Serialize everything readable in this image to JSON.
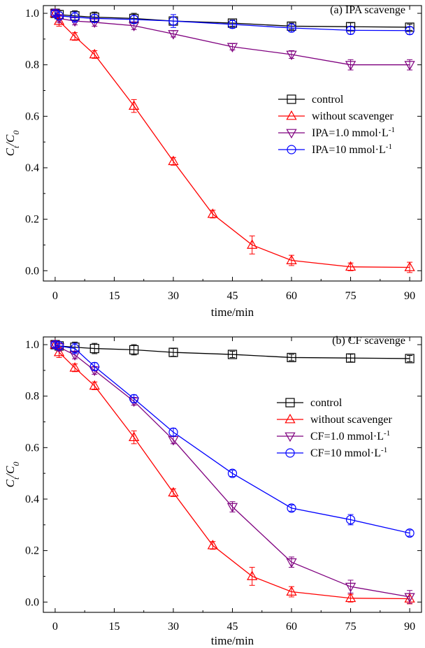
{
  "chart_data": [
    {
      "type": "line",
      "title": "(a) IPA scavenge",
      "xlabel": "time/min",
      "ylabel": "C_t/C_0",
      "ylabel_main": "C",
      "ylabel_sub_num": "t",
      "ylabel_den": "/C",
      "ylabel_sub_den": "0",
      "xlim": [
        -3,
        93
      ],
      "ylim": [
        -0.04,
        1.03
      ],
      "xticks": [
        0,
        15,
        30,
        45,
        60,
        75,
        90
      ],
      "xtick_labels": [
        "0",
        "15",
        "30",
        "45",
        "60",
        "75",
        "90"
      ],
      "yticks": [
        0.0,
        0.2,
        0.4,
        0.6,
        0.8,
        1.0
      ],
      "ytick_labels": [
        "0.0",
        "0.2",
        "0.4",
        "0.6",
        "0.8",
        "1.0"
      ],
      "x": [
        0,
        1,
        5,
        10,
        20,
        30,
        45,
        60,
        75,
        90
      ],
      "series": [
        {
          "name": "control",
          "marker": "square",
          "color": "#000000",
          "x": [
            0,
            1,
            5,
            10,
            20,
            30,
            45,
            60,
            75,
            90
          ],
          "values": [
            1.0,
            0.995,
            0.99,
            0.985,
            0.98,
            0.97,
            0.962,
            0.95,
            0.948,
            0.946
          ],
          "errors": [
            0.015,
            0.015,
            0.02,
            0.02,
            0.02,
            0.015,
            0.012,
            0.012,
            0.015,
            0.012
          ]
        },
        {
          "name": "without scavenger",
          "marker": "triangle-up",
          "color": "#ff0000",
          "x": [
            0,
            1,
            5,
            10,
            20,
            30,
            40,
            50,
            60,
            75,
            90
          ],
          "values": [
            1.0,
            0.97,
            0.91,
            0.84,
            0.64,
            0.425,
            0.22,
            0.1,
            0.04,
            0.015,
            0.013
          ],
          "errors": [
            0.015,
            0.02,
            0.015,
            0.015,
            0.025,
            0.015,
            0.015,
            0.035,
            0.02,
            0.015,
            0.02
          ]
        },
        {
          "name": "IPA=1.0 mmol·L",
          "suffix": "-1",
          "marker": "triangle-down",
          "color": "#7f007f",
          "x": [
            0,
            1,
            5,
            10,
            20,
            30,
            45,
            60,
            75,
            90
          ],
          "values": [
            1.0,
            0.98,
            0.97,
            0.965,
            0.952,
            0.92,
            0.87,
            0.84,
            0.8,
            0.8
          ],
          "errors": [
            0.01,
            0.015,
            0.015,
            0.015,
            0.015,
            0.012,
            0.012,
            0.015,
            0.02,
            0.02
          ]
        },
        {
          "name": "IPA=10 mmol·L",
          "suffix": "-1",
          "marker": "circle",
          "color": "#0000ff",
          "x": [
            0,
            1,
            5,
            10,
            20,
            30,
            45,
            60,
            75,
            90
          ],
          "values": [
            1.0,
            0.99,
            0.985,
            0.98,
            0.976,
            0.97,
            0.957,
            0.943,
            0.934,
            0.933
          ],
          "errors": [
            0.01,
            0.015,
            0.02,
            0.015,
            0.015,
            0.025,
            0.015,
            0.015,
            0.015,
            0.015
          ]
        }
      ]
    },
    {
      "type": "line",
      "title": "(b) CF scavenge",
      "xlabel": "time/min",
      "ylabel": "C_t/C_0",
      "ylabel_main": "C",
      "ylabel_sub_num": "t",
      "ylabel_den": "/C",
      "ylabel_sub_den": "0",
      "xlim": [
        -3,
        93
      ],
      "ylim": [
        -0.04,
        1.03
      ],
      "xticks": [
        0,
        15,
        30,
        45,
        60,
        75,
        90
      ],
      "xtick_labels": [
        "0",
        "15",
        "30",
        "45",
        "60",
        "75",
        "90"
      ],
      "yticks": [
        0.0,
        0.2,
        0.4,
        0.6,
        0.8,
        1.0
      ],
      "ytick_labels": [
        "0.0",
        "0.2",
        "0.4",
        "0.6",
        "0.8",
        "1.0"
      ],
      "x": [
        0,
        1,
        5,
        10,
        20,
        30,
        45,
        60,
        75,
        90
      ],
      "series": [
        {
          "name": "control",
          "marker": "square",
          "color": "#000000",
          "x": [
            0,
            1,
            5,
            10,
            20,
            30,
            45,
            60,
            75,
            90
          ],
          "values": [
            1.0,
            0.995,
            0.99,
            0.985,
            0.98,
            0.97,
            0.962,
            0.95,
            0.948,
            0.946
          ],
          "errors": [
            0.015,
            0.015,
            0.02,
            0.02,
            0.02,
            0.015,
            0.012,
            0.012,
            0.015,
            0.012
          ]
        },
        {
          "name": "without scavenger",
          "marker": "triangle-up",
          "color": "#ff0000",
          "x": [
            0,
            1,
            5,
            10,
            20,
            30,
            40,
            50,
            60,
            75,
            90
          ],
          "values": [
            1.0,
            0.97,
            0.91,
            0.84,
            0.64,
            0.425,
            0.22,
            0.1,
            0.04,
            0.015,
            0.013
          ],
          "errors": [
            0.015,
            0.02,
            0.015,
            0.015,
            0.025,
            0.015,
            0.015,
            0.035,
            0.02,
            0.015,
            0.02
          ]
        },
        {
          "name": "CF=1.0 mmol·L",
          "suffix": "-1",
          "marker": "triangle-down",
          "color": "#7f007f",
          "x": [
            0,
            1,
            5,
            10,
            20,
            30,
            45,
            60,
            75,
            90
          ],
          "values": [
            1.0,
            0.99,
            0.96,
            0.9,
            0.78,
            0.63,
            0.37,
            0.155,
            0.06,
            0.02
          ],
          "errors": [
            0.01,
            0.015,
            0.015,
            0.015,
            0.015,
            0.015,
            0.02,
            0.02,
            0.025,
            0.025
          ]
        },
        {
          "name": "CF=10 mmol·L",
          "suffix": "-1",
          "marker": "circle",
          "color": "#0000ff",
          "x": [
            0,
            1,
            5,
            10,
            20,
            30,
            45,
            60,
            75,
            90
          ],
          "values": [
            1.0,
            0.995,
            0.985,
            0.915,
            0.79,
            0.66,
            0.5,
            0.365,
            0.32,
            0.268
          ],
          "errors": [
            0.01,
            0.015,
            0.02,
            0.015,
            0.015,
            0.015,
            0.012,
            0.012,
            0.02,
            0.012
          ]
        }
      ]
    }
  ]
}
